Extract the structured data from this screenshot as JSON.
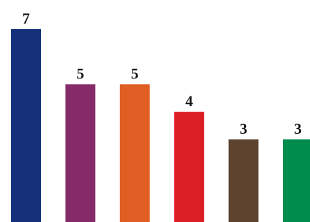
{
  "chart_data": {
    "type": "bar",
    "title": "",
    "xlabel": "",
    "ylabel": "",
    "categories": [
      "",
      "",
      "",
      "",
      "",
      ""
    ],
    "values": [
      7,
      5,
      5,
      4,
      3,
      3
    ],
    "colors": [
      "#143078",
      "#862b69",
      "#e05e23",
      "#dc1d25",
      "#5e4330",
      "#008c4c"
    ],
    "ylim": [
      0,
      7
    ],
    "grid": false,
    "legend": "none"
  }
}
